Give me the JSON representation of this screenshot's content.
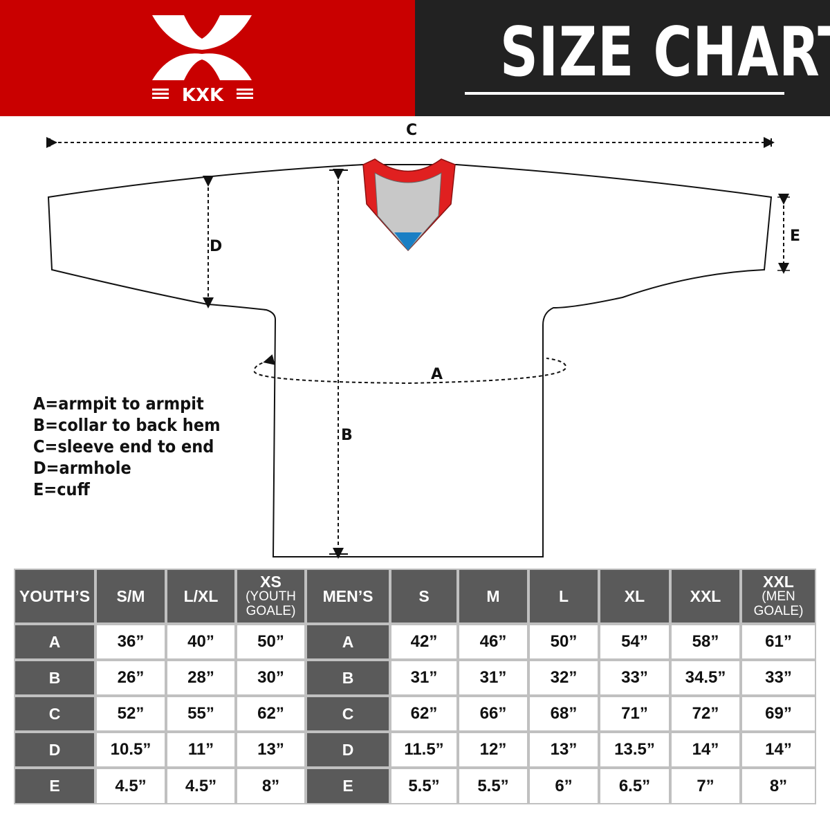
{
  "header": {
    "brand": "KXK",
    "title": "SIZE CHART",
    "colors": {
      "brand_red": "#c90000",
      "title_bg": "#222222",
      "table_dark": "#5a5a5a",
      "collar_red": "#e02020",
      "collar_gray": "#c8c8c8",
      "collar_blue": "#1a7fc4"
    }
  },
  "diagram": {
    "labels": {
      "a": "A",
      "b": "B",
      "c": "C",
      "d": "D",
      "e": "E"
    }
  },
  "legend": [
    "A=armpit to armpit",
    "B=collar to back hem",
    "C=sleeve end to end",
    "D=armhole",
    "E=cuff"
  ],
  "table": {
    "youth": {
      "header": "YOUTH’S",
      "columns": [
        {
          "label": "S/M"
        },
        {
          "label": "L/XL"
        },
        {
          "label": "XS",
          "sub": "(YOUTH GOALE)"
        }
      ],
      "rows": [
        {
          "label": "A",
          "values": [
            "36”",
            "40”",
            "50”"
          ]
        },
        {
          "label": "B",
          "values": [
            "26”",
            "28”",
            "30”"
          ]
        },
        {
          "label": "C",
          "values": [
            "52”",
            "55”",
            "62”"
          ]
        },
        {
          "label": "D",
          "values": [
            "10.5”",
            "11”",
            "13”"
          ]
        },
        {
          "label": "E",
          "values": [
            "4.5”",
            "4.5”",
            "8”"
          ]
        }
      ]
    },
    "men": {
      "header": "MEN’S",
      "columns": [
        {
          "label": "S"
        },
        {
          "label": "M"
        },
        {
          "label": "L"
        },
        {
          "label": "XL"
        },
        {
          "label": "XXL"
        },
        {
          "label": "XXL",
          "sub": "(MEN GOALE)"
        }
      ],
      "rows": [
        {
          "label": "A",
          "values": [
            "42”",
            "46”",
            "50”",
            "54”",
            "58”",
            "61”"
          ]
        },
        {
          "label": "B",
          "values": [
            "31”",
            "31”",
            "32”",
            "33”",
            "34.5”",
            "33”"
          ]
        },
        {
          "label": "C",
          "values": [
            "62”",
            "66”",
            "68”",
            "71”",
            "72”",
            "69”"
          ]
        },
        {
          "label": "D",
          "values": [
            "11.5”",
            "12”",
            "13”",
            "13.5”",
            "14”",
            "14”"
          ]
        },
        {
          "label": "E",
          "values": [
            "5.5”",
            "5.5”",
            "6”",
            "6.5”",
            "7”",
            "8”"
          ]
        }
      ]
    }
  }
}
